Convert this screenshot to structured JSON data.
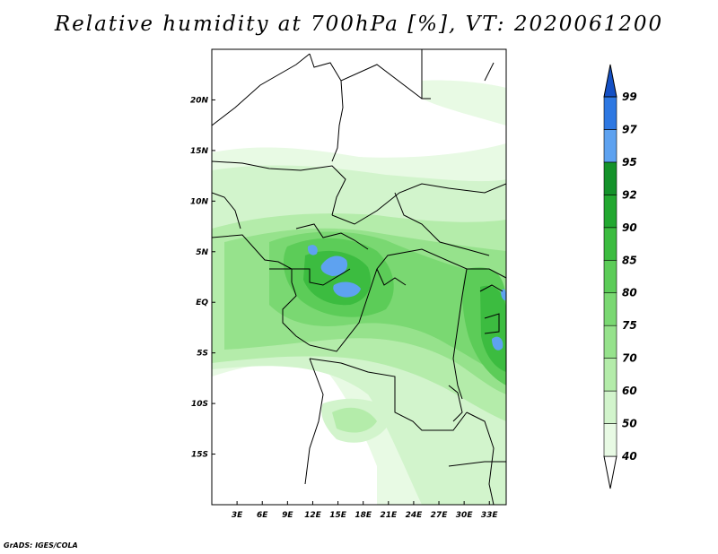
{
  "title": "Relative humidity at 700hPa [%], VT: 2020061200",
  "credit": "GrADS: IGES/COLA",
  "map": {
    "lon_range": [
      0,
      35
    ],
    "lat_range": [
      -20,
      25
    ],
    "lat_ticks": [
      {
        "value": 20,
        "label": "20N"
      },
      {
        "value": 15,
        "label": "15N"
      },
      {
        "value": 10,
        "label": "10N"
      },
      {
        "value": 5,
        "label": "5N"
      },
      {
        "value": 0,
        "label": "EQ"
      },
      {
        "value": -5,
        "label": "5S"
      },
      {
        "value": -10,
        "label": "10S"
      },
      {
        "value": -15,
        "label": "15S"
      }
    ],
    "lon_ticks": [
      {
        "value": 3,
        "label": "3E"
      },
      {
        "value": 6,
        "label": "6E"
      },
      {
        "value": 9,
        "label": "9E"
      },
      {
        "value": 12,
        "label": "12E"
      },
      {
        "value": 15,
        "label": "15E"
      },
      {
        "value": 18,
        "label": "18E"
      },
      {
        "value": 21,
        "label": "21E"
      },
      {
        "value": 24,
        "label": "24E"
      },
      {
        "value": 27,
        "label": "27E"
      },
      {
        "value": 30,
        "label": "30E"
      },
      {
        "value": 33,
        "label": "33E"
      }
    ]
  },
  "colorbar": {
    "levels": [
      "40",
      "50",
      "60",
      "70",
      "75",
      "80",
      "85",
      "90",
      "92",
      "95",
      "97",
      "99"
    ],
    "colors": [
      "#e8fae4",
      "#d2f4cc",
      "#b4ecaa",
      "#96e28c",
      "#7ad872",
      "#5ccc58",
      "#3cbc40",
      "#22a830",
      "#14922a",
      "#5ea2f0",
      "#2e78e2",
      "#1450c4"
    ],
    "lower_cap_color": "#ffffff",
    "upper_cap_color": "#1450c4"
  }
}
